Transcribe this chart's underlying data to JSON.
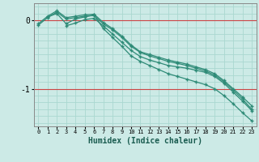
{
  "xlabel": "Humidex (Indice chaleur)",
  "background_color": "#cceae6",
  "grid_color": "#aad8d0",
  "line_color": "#2e8b77",
  "red_line_color": "#cc4444",
  "xlim": [
    -0.5,
    23.5
  ],
  "ylim": [
    -1.55,
    0.25
  ],
  "ytick_vals": [
    0,
    -1
  ],
  "ytick_labels": [
    "0",
    "-1"
  ],
  "series": [
    [
      -0.07,
      0.04,
      0.12,
      0.02,
      0.04,
      0.06,
      0.07,
      -0.05,
      -0.14,
      -0.25,
      -0.38,
      -0.47,
      -0.52,
      -0.56,
      -0.6,
      -0.63,
      -0.66,
      -0.7,
      -0.74,
      -0.8,
      -0.9,
      -1.02,
      -1.15,
      -1.3
    ],
    [
      -0.05,
      0.06,
      0.14,
      0.04,
      0.06,
      0.08,
      0.09,
      -0.03,
      -0.12,
      -0.23,
      -0.36,
      -0.46,
      -0.5,
      -0.54,
      -0.58,
      -0.61,
      -0.64,
      -0.68,
      -0.72,
      -0.78,
      -0.88,
      -1.0,
      -1.12,
      -1.25
    ],
    [
      null,
      null,
      null,
      -0.08,
      -0.04,
      0.01,
      0.03,
      -0.08,
      -0.2,
      -0.32,
      -0.44,
      -0.53,
      -0.58,
      -0.62,
      -0.66,
      -0.68,
      -0.7,
      -0.73,
      -0.76,
      -0.82,
      -0.92,
      -1.05,
      -1.18,
      -1.32
    ],
    [
      null,
      0.05,
      0.1,
      -0.05,
      0.02,
      0.05,
      0.08,
      -0.12,
      -0.25,
      -0.38,
      -0.52,
      -0.6,
      -0.66,
      -0.72,
      -0.78,
      -0.82,
      -0.86,
      -0.9,
      -0.94,
      -1.0,
      -1.1,
      -1.22,
      -1.35,
      -1.47
    ]
  ]
}
